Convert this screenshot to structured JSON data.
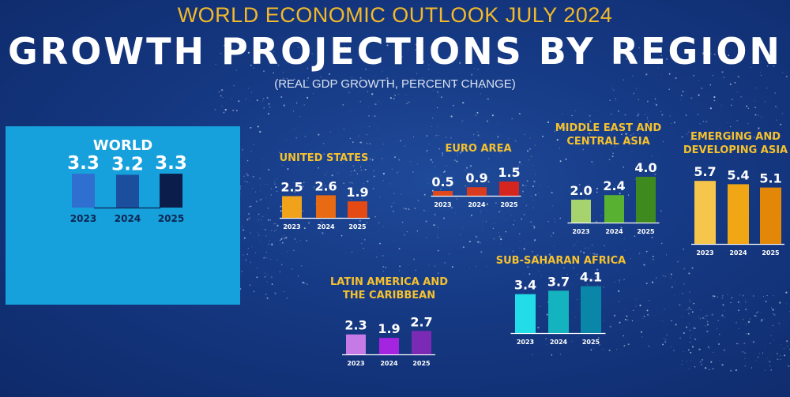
{
  "header": {
    "top_title": "WORLD ECONOMIC OUTLOOK JULY 2024",
    "main_title": "GROWTH PROJECTIONS BY REGION",
    "subtitle": "(REAL GDP GROWTH, PERCENT CHANGE)"
  },
  "colors": {
    "background": "#163a85",
    "title_gold": "#f3b928",
    "world_panel": "#16a0dc"
  },
  "chart_data": [
    {
      "id": "world",
      "type": "bar",
      "title": "WORLD",
      "categories": [
        "2023",
        "2024",
        "2025"
      ],
      "values": [
        3.3,
        3.2,
        3.3
      ],
      "colors": [
        "#2f6fd0",
        "#1b4f9e",
        "#0b1d4a"
      ]
    },
    {
      "id": "us",
      "type": "bar",
      "title": "UNITED STATES",
      "categories": [
        "2023",
        "2024",
        "2025"
      ],
      "values": [
        2.5,
        2.6,
        1.9
      ],
      "colors": [
        "#f0a31a",
        "#e86a12",
        "#e54a14"
      ]
    },
    {
      "id": "euro",
      "type": "bar",
      "title": "EURO AREA",
      "categories": [
        "2023",
        "2024",
        "2025"
      ],
      "values": [
        0.5,
        0.9,
        1.5
      ],
      "colors": [
        "#e0491c",
        "#d93b1e",
        "#d4251f"
      ]
    },
    {
      "id": "mecasia",
      "type": "bar",
      "title": "MIDDLE EAST AND CENTRAL ASIA",
      "categories": [
        "2023",
        "2024",
        "2025"
      ],
      "values": [
        2.0,
        2.4,
        4.0
      ],
      "colors": [
        "#a7d36f",
        "#59b131",
        "#3e8a1e"
      ]
    },
    {
      "id": "emdev",
      "type": "bar",
      "title": "EMERGING AND DEVELOPING ASIA",
      "categories": [
        "2023",
        "2024",
        "2025"
      ],
      "values": [
        5.7,
        5.4,
        5.1
      ],
      "colors": [
        "#f6c54c",
        "#f0a615",
        "#e38709"
      ]
    },
    {
      "id": "latam",
      "type": "bar",
      "title": "LATIN AMERICA AND THE CARIBBEAN",
      "categories": [
        "2023",
        "2024",
        "2025"
      ],
      "values": [
        2.3,
        1.9,
        2.7
      ],
      "colors": [
        "#c57ae6",
        "#a424e0",
        "#7b2ab5"
      ]
    },
    {
      "id": "ssa",
      "type": "bar",
      "title": "SUB-SAHARAN AFRICA",
      "categories": [
        "2023",
        "2024",
        "2025"
      ],
      "values": [
        3.4,
        3.7,
        4.1
      ],
      "colors": [
        "#22dce8",
        "#13b3bf",
        "#0a86a8"
      ]
    }
  ]
}
